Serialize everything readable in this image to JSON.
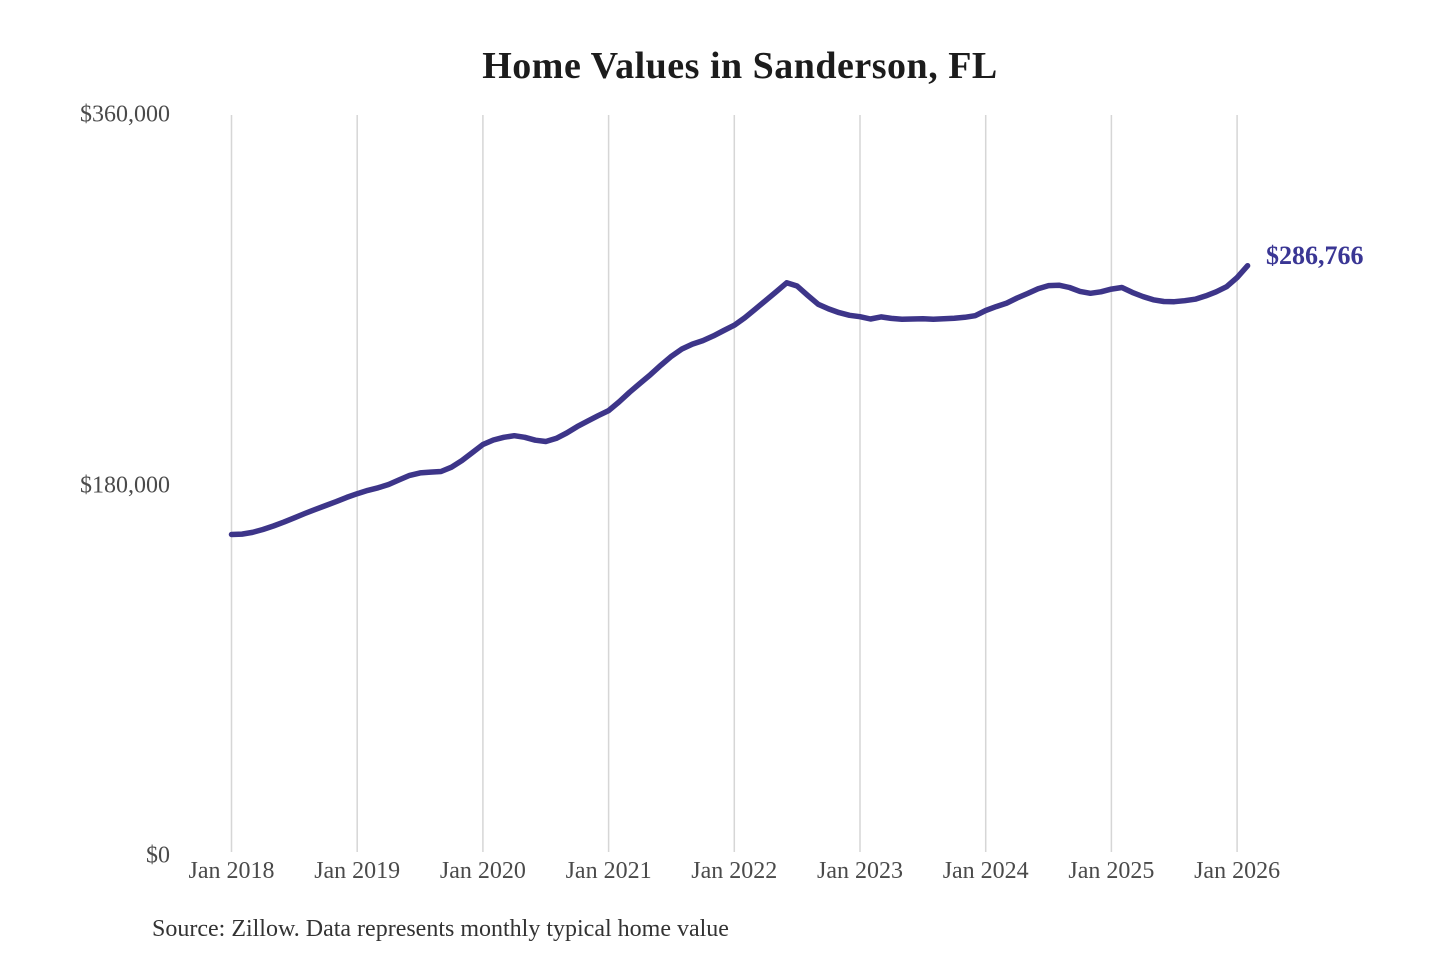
{
  "title": "Home Values in Sanderson, FL",
  "end_label": "$286,766",
  "source_note": "Source: Zillow. Data represents monthly typical home value",
  "colors": {
    "line": "#3d3589",
    "end_label": "#3a3694",
    "gridline": "#d6d6d6",
    "axis_text": "#4a4a4a",
    "title_text": "#1c1c1c",
    "source_text": "#333333",
    "background": "#ffffff"
  },
  "chart_data": {
    "type": "line",
    "title": "Home Values in Sanderson, FL",
    "xlabel": "",
    "ylabel": "",
    "ylim": [
      0,
      360000
    ],
    "grid": "vertical-only",
    "legend": "none",
    "x_tick_labels": [
      "Jan 2018",
      "Jan 2019",
      "Jan 2020",
      "Jan 2021",
      "Jan 2022",
      "Jan 2023",
      "Jan 2024",
      "Jan 2025",
      "Jan 2026"
    ],
    "y_ticks": [
      {
        "label": "$0",
        "value": 0
      },
      {
        "label": "$180,000",
        "value": 180000
      },
      {
        "label": "$360,000",
        "value": 360000
      }
    ],
    "x_start": "2018-01",
    "x_interval": "month",
    "final_value": 286766,
    "series": [
      {
        "name": "Typical home value",
        "values": [
          156200,
          156400,
          157200,
          158600,
          160300,
          162200,
          164300,
          166400,
          168400,
          170300,
          172200,
          174200,
          176000,
          177600,
          178900,
          180500,
          182700,
          184900,
          186100,
          186500,
          186800,
          188900,
          192100,
          196000,
          199900,
          202100,
          203400,
          204200,
          203400,
          202000,
          201400,
          202900,
          205500,
          208600,
          211300,
          213900,
          216400,
          220600,
          225300,
          229600,
          233900,
          238500,
          242800,
          246300,
          248700,
          250400,
          252700,
          255300,
          257900,
          261500,
          265700,
          269900,
          274100,
          278500,
          276900,
          272400,
          268100,
          265800,
          264000,
          262700,
          262000,
          260900,
          261900,
          261200,
          260800,
          260900,
          261000,
          260800,
          261000,
          261300,
          261700,
          262500,
          265000,
          266900,
          268600,
          271100,
          273300,
          275600,
          277100,
          277300,
          276200,
          274300,
          273400,
          274100,
          275400,
          276200,
          273800,
          271800,
          270200,
          269400,
          269300,
          269800,
          270500,
          272100,
          274100,
          276600,
          281000,
          286766
        ]
      }
    ]
  }
}
